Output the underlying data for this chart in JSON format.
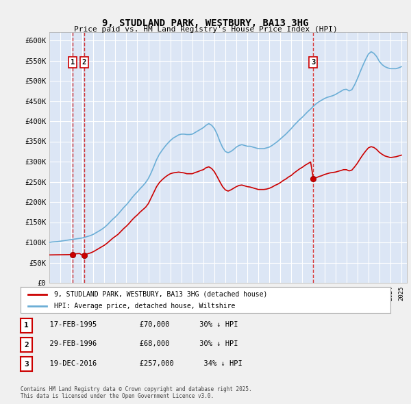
{
  "title": "9, STUDLAND PARK, WESTBURY, BA13 3HG",
  "subtitle": "Price paid vs. HM Land Registry's House Price Index (HPI)",
  "ylabel": "",
  "xlim_start": 1993.0,
  "xlim_end": 2025.5,
  "ylim_min": 0,
  "ylim_max": 620000,
  "yticks": [
    0,
    50000,
    100000,
    150000,
    200000,
    250000,
    300000,
    350000,
    400000,
    450000,
    500000,
    550000,
    600000
  ],
  "ytick_labels": [
    "£0",
    "£50K",
    "£100K",
    "£150K",
    "£200K",
    "£250K",
    "£300K",
    "£350K",
    "£400K",
    "£450K",
    "£500K",
    "£550K",
    "£600K"
  ],
  "background_color": "#dce6f5",
  "plot_bg_color": "#dce6f5",
  "grid_color": "#ffffff",
  "hpi_line_color": "#6baed6",
  "price_line_color": "#cc0000",
  "sale_marker_color": "#cc0000",
  "sale_points": [
    {
      "year": 1995.12,
      "price": 70000,
      "label": "1"
    },
    {
      "year": 1996.16,
      "price": 68000,
      "label": "2"
    },
    {
      "year": 2016.97,
      "price": 257000,
      "label": "3"
    }
  ],
  "vline_years": [
    1995.12,
    1996.16,
    2016.97
  ],
  "legend_entries": [
    "9, STUDLAND PARK, WESTBURY, BA13 3HG (detached house)",
    "HPI: Average price, detached house, Wiltshire"
  ],
  "table_rows": [
    {
      "num": "1",
      "date": "17-FEB-1995",
      "price": "£70,000",
      "hpi": "30% ↓ HPI"
    },
    {
      "num": "2",
      "date": "29-FEB-1996",
      "price": "£68,000",
      "hpi": "30% ↓ HPI"
    },
    {
      "num": "3",
      "date": "19-DEC-2016",
      "price": "£257,000",
      "hpi": "34% ↓ HPI"
    }
  ],
  "footer": "Contains HM Land Registry data © Crown copyright and database right 2025.\nThis data is licensed under the Open Government Licence v3.0.",
  "hpi_data_x": [
    1993.0,
    1993.25,
    1993.5,
    1993.75,
    1994.0,
    1994.25,
    1994.5,
    1994.75,
    1995.0,
    1995.25,
    1995.5,
    1995.75,
    1996.0,
    1996.25,
    1996.5,
    1996.75,
    1997.0,
    1997.25,
    1997.5,
    1997.75,
    1998.0,
    1998.25,
    1998.5,
    1998.75,
    1999.0,
    1999.25,
    1999.5,
    1999.75,
    2000.0,
    2000.25,
    2000.5,
    2000.75,
    2001.0,
    2001.25,
    2001.5,
    2001.75,
    2002.0,
    2002.25,
    2002.5,
    2002.75,
    2003.0,
    2003.25,
    2003.5,
    2003.75,
    2004.0,
    2004.25,
    2004.5,
    2004.75,
    2005.0,
    2005.25,
    2005.5,
    2005.75,
    2006.0,
    2006.25,
    2006.5,
    2006.75,
    2007.0,
    2007.25,
    2007.5,
    2007.75,
    2008.0,
    2008.25,
    2008.5,
    2008.75,
    2009.0,
    2009.25,
    2009.5,
    2009.75,
    2010.0,
    2010.25,
    2010.5,
    2010.75,
    2011.0,
    2011.25,
    2011.5,
    2011.75,
    2012.0,
    2012.25,
    2012.5,
    2012.75,
    2013.0,
    2013.25,
    2013.5,
    2013.75,
    2014.0,
    2014.25,
    2014.5,
    2014.75,
    2015.0,
    2015.25,
    2015.5,
    2015.75,
    2016.0,
    2016.25,
    2016.5,
    2016.75,
    2017.0,
    2017.25,
    2017.5,
    2017.75,
    2018.0,
    2018.25,
    2018.5,
    2018.75,
    2019.0,
    2019.25,
    2019.5,
    2019.75,
    2020.0,
    2020.25,
    2020.5,
    2020.75,
    2021.0,
    2021.25,
    2021.5,
    2021.75,
    2022.0,
    2022.25,
    2022.5,
    2022.75,
    2023.0,
    2023.25,
    2023.5,
    2023.75,
    2024.0,
    2024.25,
    2024.5,
    2024.75,
    2025.0
  ],
  "hpi_data_y": [
    100000,
    101000,
    101500,
    102000,
    103000,
    104000,
    105000,
    106000,
    107000,
    108000,
    109000,
    110000,
    111000,
    113000,
    115000,
    117000,
    120000,
    124000,
    128000,
    132000,
    137000,
    143000,
    150000,
    157000,
    163000,
    170000,
    178000,
    186000,
    193000,
    201000,
    210000,
    218000,
    225000,
    233000,
    240000,
    248000,
    258000,
    272000,
    288000,
    305000,
    318000,
    328000,
    337000,
    345000,
    352000,
    358000,
    362000,
    366000,
    368000,
    368000,
    367000,
    367000,
    368000,
    372000,
    376000,
    380000,
    384000,
    390000,
    394000,
    390000,
    382000,
    368000,
    350000,
    335000,
    325000,
    322000,
    325000,
    330000,
    336000,
    340000,
    342000,
    340000,
    338000,
    338000,
    336000,
    334000,
    332000,
    332000,
    332000,
    334000,
    336000,
    340000,
    345000,
    350000,
    356000,
    362000,
    368000,
    375000,
    382000,
    390000,
    397000,
    404000,
    410000,
    417000,
    424000,
    430000,
    437000,
    443000,
    448000,
    452000,
    456000,
    459000,
    461000,
    463000,
    466000,
    470000,
    474000,
    478000,
    479000,
    475000,
    478000,
    490000,
    505000,
    522000,
    538000,
    553000,
    566000,
    572000,
    568000,
    560000,
    548000,
    540000,
    535000,
    532000,
    530000,
    530000,
    530000,
    532000,
    535000
  ],
  "price_data_x": [
    1993.0,
    1993.25,
    1993.5,
    1993.75,
    1994.0,
    1994.25,
    1994.5,
    1994.75,
    1995.0,
    1995.25,
    1995.5,
    1995.75,
    1996.0,
    1996.25,
    1996.5,
    1996.75,
    1997.0,
    1997.25,
    1997.5,
    1997.75,
    1998.0,
    1998.25,
    1998.5,
    1998.75,
    1999.0,
    1999.25,
    1999.5,
    1999.75,
    2000.0,
    2000.25,
    2000.5,
    2000.75,
    2001.0,
    2001.25,
    2001.5,
    2001.75,
    2002.0,
    2002.25,
    2002.5,
    2002.75,
    2003.0,
    2003.25,
    2003.5,
    2003.75,
    2004.0,
    2004.25,
    2004.5,
    2004.75,
    2005.0,
    2005.25,
    2005.5,
    2005.75,
    2006.0,
    2006.25,
    2006.5,
    2006.75,
    2007.0,
    2007.25,
    2007.5,
    2007.75,
    2008.0,
    2008.25,
    2008.5,
    2008.75,
    2009.0,
    2009.25,
    2009.5,
    2009.75,
    2010.0,
    2010.25,
    2010.5,
    2010.75,
    2011.0,
    2011.25,
    2011.5,
    2011.75,
    2012.0,
    2012.25,
    2012.5,
    2012.75,
    2013.0,
    2013.25,
    2013.5,
    2013.75,
    2014.0,
    2014.25,
    2014.5,
    2014.75,
    2015.0,
    2015.25,
    2015.5,
    2015.75,
    2016.0,
    2016.25,
    2016.5,
    2016.75,
    2017.0,
    2017.25,
    2017.5,
    2017.75,
    2018.0,
    2018.25,
    2018.5,
    2018.75,
    2019.0,
    2019.25,
    2019.5,
    2019.75,
    2020.0,
    2020.25,
    2020.5,
    2020.75,
    2021.0,
    2021.25,
    2021.5,
    2021.75,
    2022.0,
    2022.25,
    2022.5,
    2022.75,
    2023.0,
    2023.25,
    2023.5,
    2023.75,
    2024.0,
    2024.25,
    2024.5,
    2024.75,
    2025.0
  ],
  "price_data_y": [
    69000,
    69100,
    69200,
    69300,
    69400,
    69500,
    69600,
    69700,
    70000,
    71000,
    72000,
    72500,
    68000,
    70000,
    72000,
    74000,
    77000,
    81000,
    85000,
    89000,
    93000,
    98000,
    104000,
    110000,
    115000,
    120000,
    127000,
    134000,
    140000,
    147000,
    155000,
    162000,
    168000,
    175000,
    181000,
    187000,
    196000,
    210000,
    224000,
    238000,
    248000,
    255000,
    261000,
    266000,
    270000,
    272000,
    273000,
    274000,
    273000,
    272000,
    270000,
    270000,
    270000,
    273000,
    275000,
    278000,
    280000,
    285000,
    287000,
    283000,
    275000,
    263000,
    250000,
    238000,
    230000,
    227000,
    230000,
    234000,
    238000,
    241000,
    242000,
    240000,
    238000,
    237000,
    235000,
    233000,
    231000,
    231000,
    231000,
    232000,
    234000,
    237000,
    241000,
    244000,
    248000,
    253000,
    257000,
    262000,
    266000,
    272000,
    277000,
    282000,
    286000,
    291000,
    295000,
    299000,
    257000,
    260000,
    263000,
    265000,
    268000,
    270000,
    272000,
    273000,
    274000,
    276000,
    278000,
    280000,
    280000,
    277000,
    279000,
    287000,
    296000,
    307000,
    317000,
    326000,
    334000,
    337000,
    335000,
    330000,
    323000,
    318000,
    314000,
    312000,
    310000,
    311000,
    312000,
    314000,
    316000
  ]
}
